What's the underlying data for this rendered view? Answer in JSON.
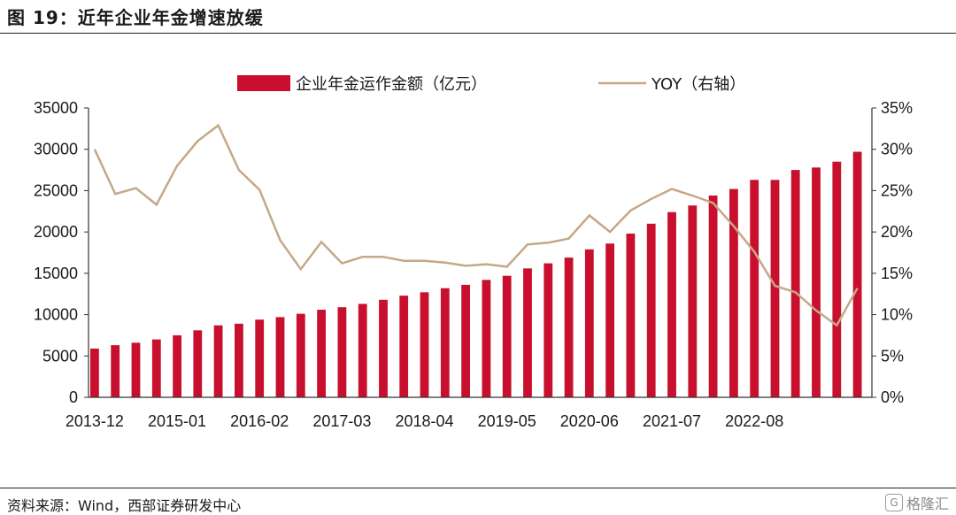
{
  "title": "图 19：近年企业年金增速放缓",
  "source": "资料来源：Wind，西部证券研发中心",
  "watermark": "格隆汇",
  "colors": {
    "bar": "#c8102e",
    "line": "#c4a888"
  },
  "chart_data": {
    "type": "bar",
    "x_tick_labels": [
      "2013-12",
      "2015-01",
      "2016-02",
      "2017-03",
      "2018-04",
      "2019-05",
      "2020-06",
      "2021-07",
      "2022-08"
    ],
    "left_axis": {
      "ylim": [
        0,
        35000
      ],
      "ticks": [
        "0",
        "5000",
        "10000",
        "15000",
        "20000",
        "25000",
        "30000",
        "35000"
      ]
    },
    "right_axis": {
      "ylim": [
        0,
        35
      ],
      "ticks": [
        "0%",
        "5%",
        "10%",
        "15%",
        "20%",
        "25%",
        "30%",
        "35%"
      ]
    },
    "legend_position": "top",
    "series": [
      {
        "name": "企业年金运作金额（亿元）",
        "type": "bar",
        "axis": "left",
        "values": [
          5900,
          6300,
          6600,
          7000,
          7500,
          8100,
          8700,
          8900,
          9400,
          9700,
          10100,
          10600,
          10900,
          11300,
          11800,
          12300,
          12700,
          13200,
          13600,
          14200,
          14700,
          15600,
          16200,
          16900,
          17900,
          18600,
          19800,
          21000,
          22400,
          23200,
          24400,
          25200,
          26300,
          26300,
          27500,
          27800,
          28500,
          29700
        ]
      },
      {
        "name": "YOY（右轴）",
        "type": "line",
        "axis": "right",
        "values": [
          30.0,
          24.6,
          25.3,
          23.3,
          28.0,
          31.0,
          32.9,
          27.5,
          25.1,
          19.0,
          15.5,
          18.8,
          16.2,
          17.0,
          17.0,
          16.5,
          16.5,
          16.3,
          15.9,
          16.1,
          15.8,
          18.5,
          18.7,
          19.2,
          22.0,
          20.0,
          22.6,
          24.0,
          25.2,
          24.4,
          23.5,
          20.7,
          17.6,
          13.5,
          12.7,
          10.5,
          8.7,
          13.2
        ]
      }
    ]
  }
}
